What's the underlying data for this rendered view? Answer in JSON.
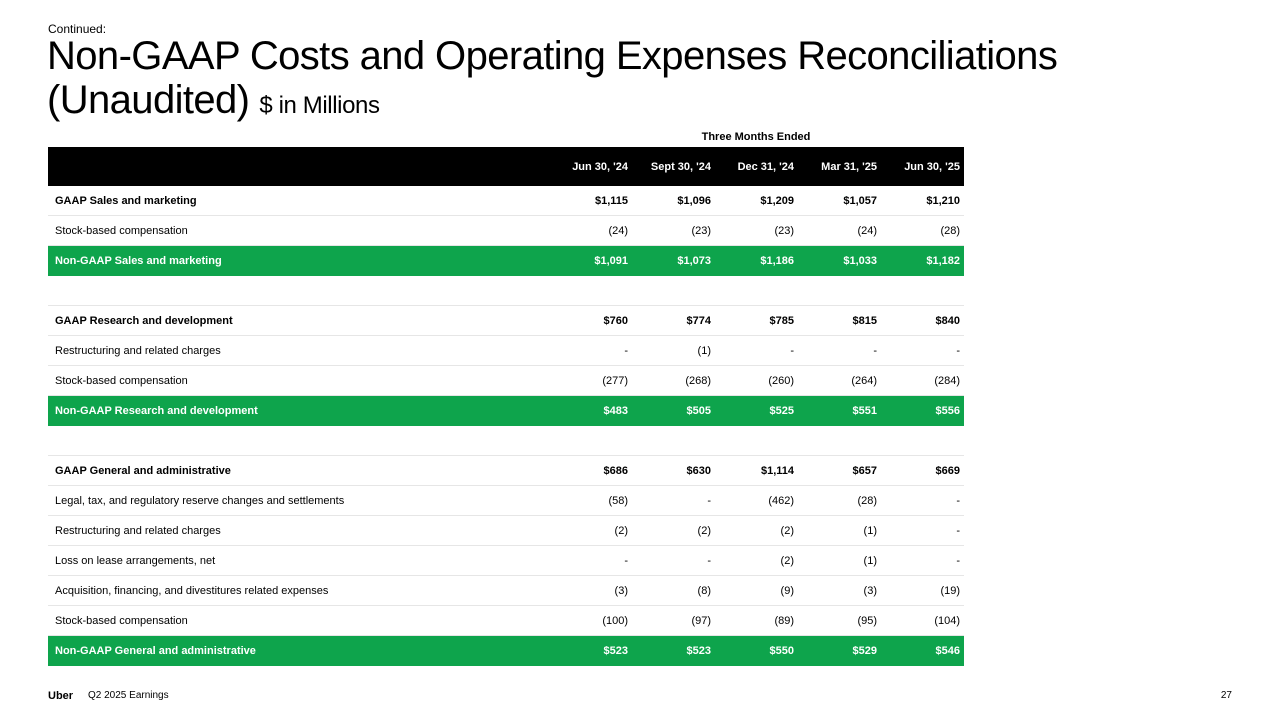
{
  "header": {
    "continued": "Continued:",
    "title": "Non-GAAP Costs and Operating Expenses Reconciliations (Unaudited)",
    "units": "$ in Millions"
  },
  "table": {
    "period_caption": "Three Months Ended",
    "columns": [
      "Jun 30, '24",
      "Sept 30, '24",
      "Dec 31, '24",
      "Mar 31, '25",
      "Jun 30, '25"
    ],
    "sections": [
      {
        "rows": [
          {
            "type": "gaap",
            "label": "GAAP Sales and marketing",
            "values": [
              "$1,115",
              "$1,096",
              "$1,209",
              "$1,057",
              "$1,210"
            ]
          },
          {
            "type": "item",
            "label": "Stock-based compensation",
            "values": [
              "(24)",
              "(23)",
              "(23)",
              "(24)",
              "(28)"
            ]
          },
          {
            "type": "nongaap",
            "label": "Non-GAAP Sales and marketing",
            "values": [
              "$1,091",
              "$1,073",
              "$1,186",
              "$1,033",
              "$1,182"
            ]
          }
        ]
      },
      {
        "rows": [
          {
            "type": "gaap",
            "label": "GAAP Research and development",
            "values": [
              "$760",
              "$774",
              "$785",
              "$815",
              "$840"
            ]
          },
          {
            "type": "item",
            "label": "Restructuring and related charges",
            "values": [
              "-",
              "(1)",
              "-",
              "-",
              "-"
            ]
          },
          {
            "type": "item",
            "label": "Stock-based compensation",
            "values": [
              "(277)",
              "(268)",
              "(260)",
              "(264)",
              "(284)"
            ]
          },
          {
            "type": "nongaap",
            "label": "Non-GAAP Research and development",
            "values": [
              "$483",
              "$505",
              "$525",
              "$551",
              "$556"
            ]
          }
        ]
      },
      {
        "rows": [
          {
            "type": "gaap",
            "label": "GAAP General and administrative",
            "values": [
              "$686",
              "$630",
              "$1,114",
              "$657",
              "$669"
            ]
          },
          {
            "type": "item",
            "label": "Legal, tax, and regulatory reserve changes and settlements",
            "values": [
              "(58)",
              "-",
              "(462)",
              "(28)",
              "-"
            ]
          },
          {
            "type": "item",
            "label": "Restructuring and related charges",
            "values": [
              "(2)",
              "(2)",
              "(2)",
              "(1)",
              "-"
            ]
          },
          {
            "type": "item",
            "label": "Loss on lease arrangements, net",
            "values": [
              "-",
              "-",
              "(2)",
              "(1)",
              "-"
            ]
          },
          {
            "type": "item",
            "label": "Acquisition, financing, and divestitures related expenses",
            "values": [
              "(3)",
              "(8)",
              "(9)",
              "(3)",
              "(19)"
            ]
          },
          {
            "type": "item",
            "label": "Stock-based compensation",
            "values": [
              "(100)",
              "(97)",
              "(89)",
              "(95)",
              "(104)"
            ]
          },
          {
            "type": "nongaap",
            "label": "Non-GAAP General and administrative",
            "values": [
              "$523",
              "$523",
              "$550",
              "$529",
              "$546"
            ]
          }
        ]
      }
    ]
  },
  "footer": {
    "brand": "Uber",
    "subtitle": "Q2 2025 Earnings",
    "page_number": "27"
  },
  "colors": {
    "accent_green": "#0ea44c",
    "header_black": "#000000"
  }
}
